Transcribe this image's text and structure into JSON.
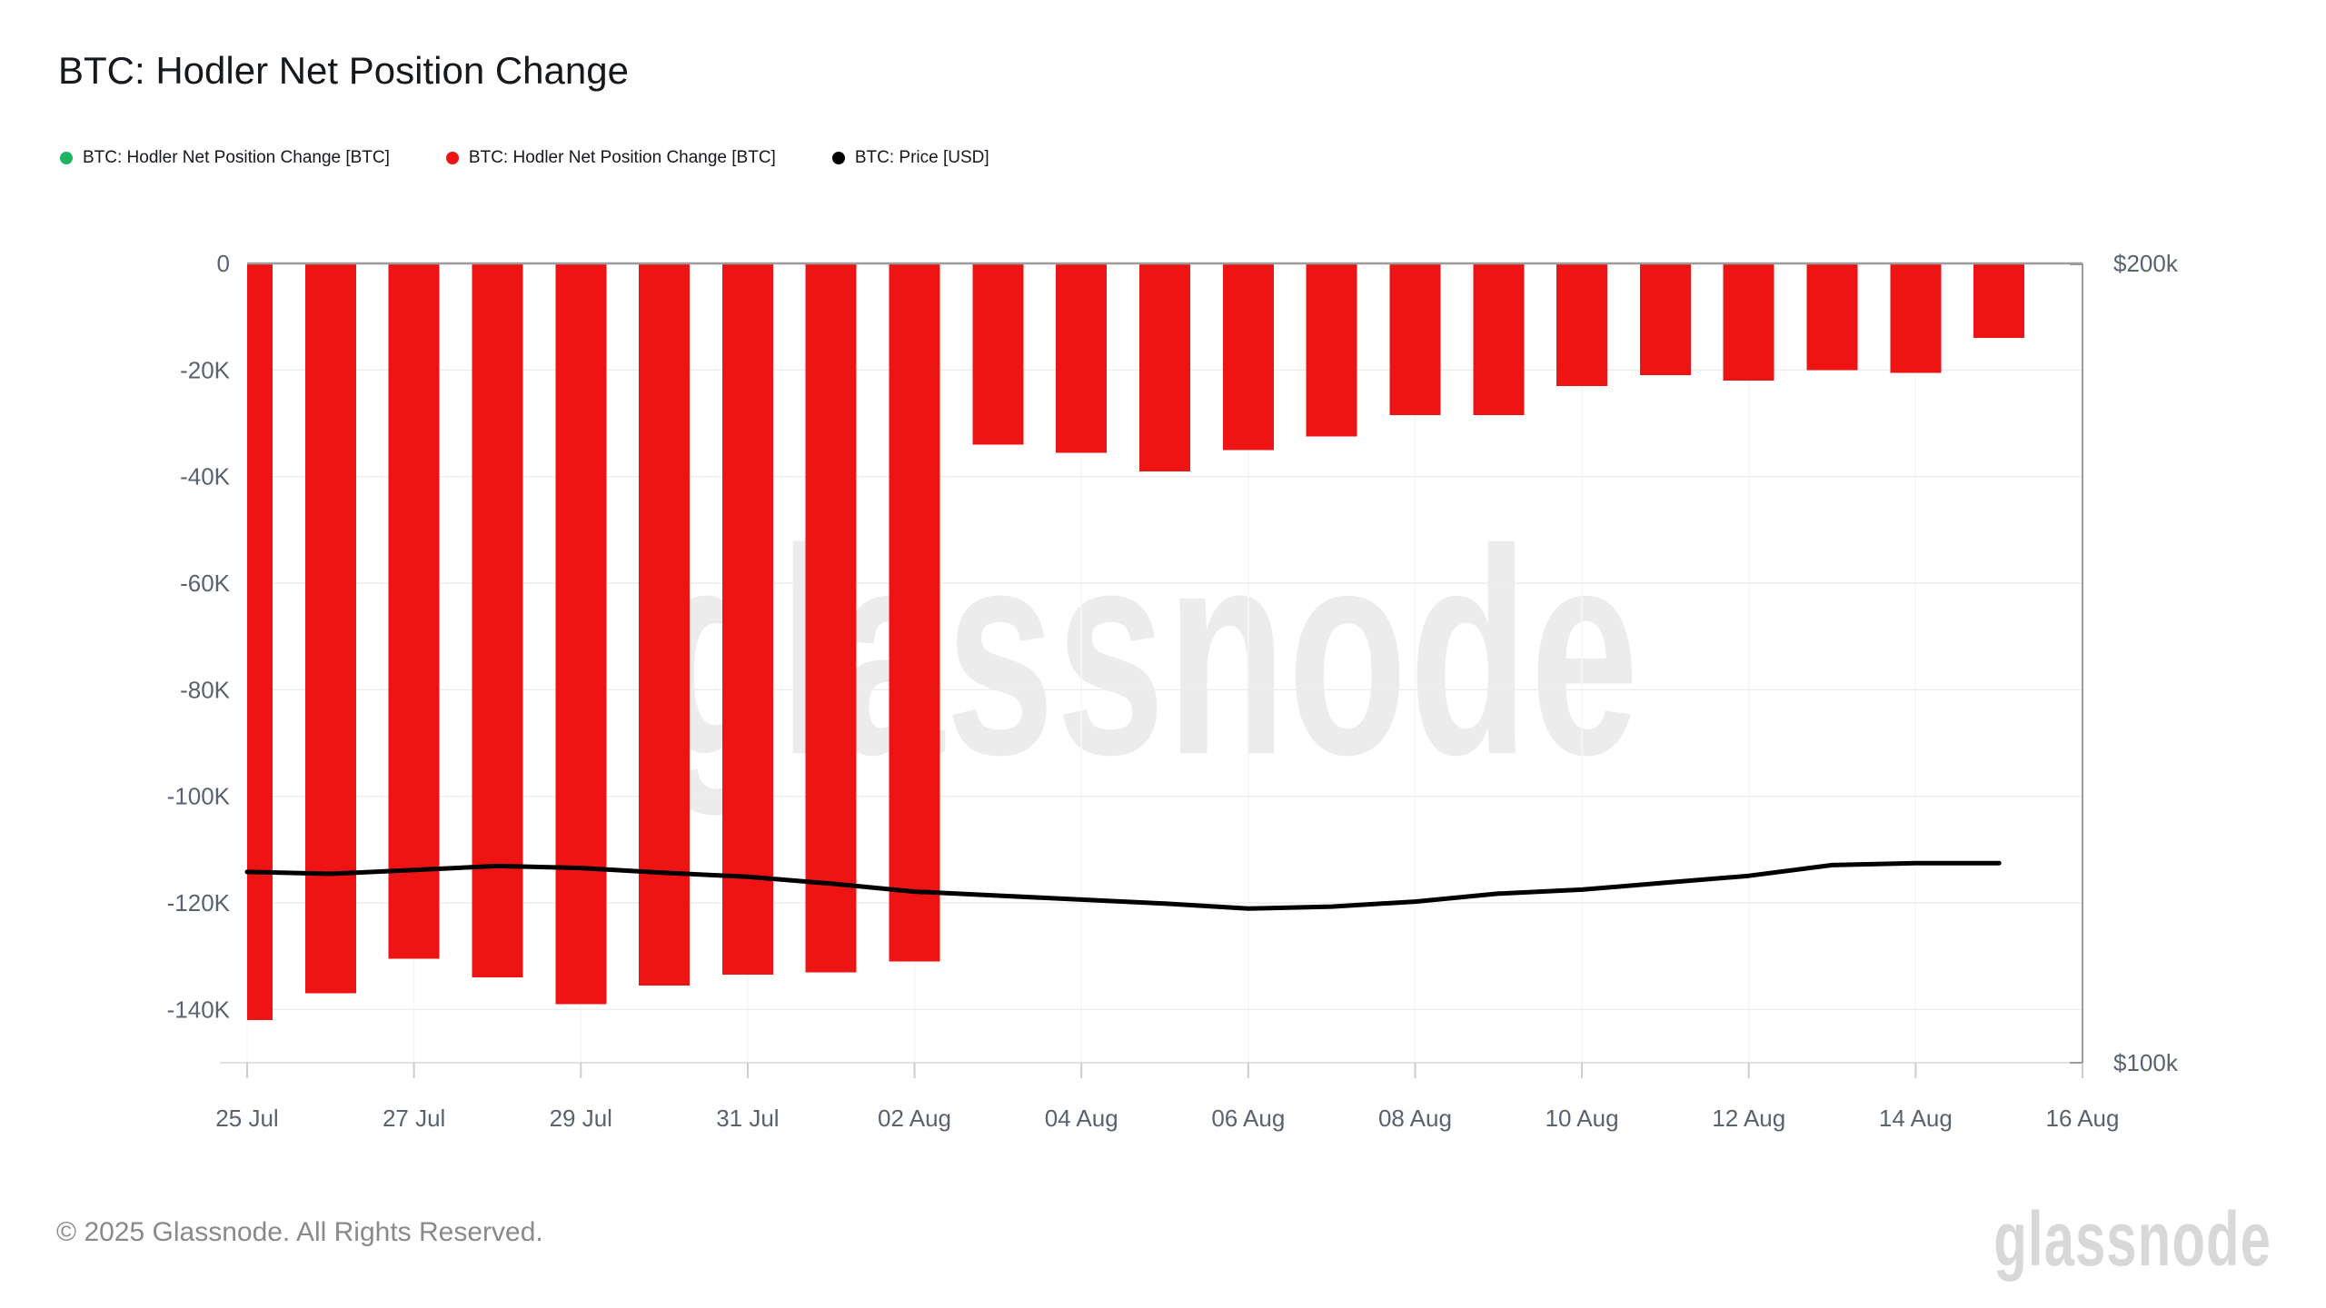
{
  "watermark": {
    "text": "glassnode",
    "color": "#ececec"
  },
  "footer": {
    "copyright": "© 2025 Glassnode. All Rights Reserved.",
    "logo": "glassnode"
  },
  "chart_data": {
    "type": "bar",
    "title": "BTC: Hodler Net Position Change",
    "categories": [
      "25 Jul",
      "26 Jul",
      "27 Jul",
      "28 Jul",
      "29 Jul",
      "30 Jul",
      "31 Jul",
      "01 Aug",
      "02 Aug",
      "03 Aug",
      "04 Aug",
      "05 Aug",
      "06 Aug",
      "07 Aug",
      "08 Aug",
      "09 Aug",
      "10 Aug",
      "11 Aug",
      "12 Aug",
      "13 Aug",
      "14 Aug",
      "15 Aug"
    ],
    "series": [
      {
        "name": "BTC: Hodler Net Position Change [BTC]",
        "type": "bar",
        "color": "#ee1414",
        "axis": "left",
        "values": [
          -142000,
          -137000,
          -130500,
          -134000,
          -139000,
          -135500,
          -133500,
          -133000,
          -131000,
          -34000,
          -35500,
          -39000,
          -35000,
          -32500,
          -28500,
          -28500,
          -23000,
          -21000,
          -22000,
          -20000,
          -20500,
          -14000
        ]
      },
      {
        "name": "BTC: Price [USD]",
        "type": "line",
        "color": "#000000",
        "axis": "right",
        "values": [
          118000,
          117800,
          118200,
          118600,
          118400,
          117900,
          117500,
          116800,
          116000,
          115600,
          115200,
          114800,
          114300,
          114500,
          115000,
          115800,
          116200,
          116900,
          117600,
          118700,
          118900,
          118900
        ]
      }
    ],
    "legend": [
      {
        "label": "BTC: Hodler Net Position Change [BTC]",
        "color": "#1db563"
      },
      {
        "label": "BTC: Hodler Net Position Change [BTC]",
        "color": "#ee1414"
      },
      {
        "label": "BTC: Price [USD]",
        "color": "#000000"
      }
    ],
    "left_axis": {
      "scale": "linear",
      "range_top": 0,
      "range_bottom": -150000,
      "ticks": [
        {
          "label": "0",
          "value": 0
        },
        {
          "label": "-20K",
          "value": -20000
        },
        {
          "label": "-40K",
          "value": -40000
        },
        {
          "label": "-60K",
          "value": -60000
        },
        {
          "label": "-80K",
          "value": -80000
        },
        {
          "label": "-100K",
          "value": -100000
        },
        {
          "label": "-120K",
          "value": -120000
        },
        {
          "label": "-140K",
          "value": -140000
        }
      ]
    },
    "right_axis": {
      "scale": "log",
      "range_top": 200000,
      "range_bottom": 100000,
      "ticks": [
        {
          "label": "$200k",
          "value": 200000
        },
        {
          "label": "$100k",
          "value": 100000
        }
      ]
    },
    "x_axis": {
      "tick_labels": [
        "25 Jul",
        "27 Jul",
        "29 Jul",
        "31 Jul",
        "02 Aug",
        "04 Aug",
        "06 Aug",
        "08 Aug",
        "10 Aug",
        "12 Aug",
        "14 Aug",
        "16 Aug"
      ]
    },
    "grid": {
      "horizontal": true,
      "vertical": true,
      "legend_position": "top-left"
    }
  }
}
